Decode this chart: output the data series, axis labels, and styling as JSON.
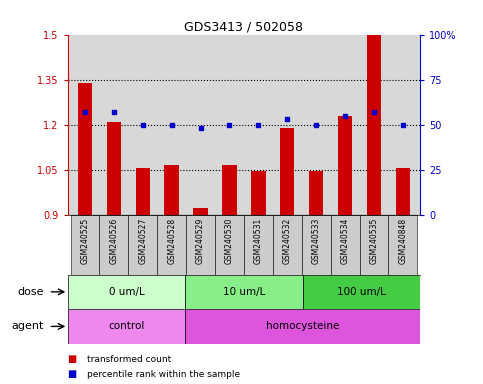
{
  "title": "GDS3413 / 502058",
  "samples": [
    "GSM240525",
    "GSM240526",
    "GSM240527",
    "GSM240528",
    "GSM240529",
    "GSM240530",
    "GSM240531",
    "GSM240532",
    "GSM240533",
    "GSM240534",
    "GSM240535",
    "GSM240848"
  ],
  "bar_values": [
    1.34,
    1.21,
    1.055,
    1.065,
    0.925,
    1.065,
    1.045,
    1.19,
    1.045,
    1.23,
    1.5,
    1.055
  ],
  "percentile_values": [
    57,
    57,
    50,
    50,
    48,
    50,
    50,
    53,
    50,
    55,
    57,
    50
  ],
  "bar_color": "#cc0000",
  "percentile_color": "#0000cc",
  "ylim_left": [
    0.9,
    1.5
  ],
  "ylim_right": [
    0,
    100
  ],
  "yticks_left": [
    0.9,
    1.05,
    1.2,
    1.35,
    1.5
  ],
  "yticks_right": [
    0,
    25,
    50,
    75,
    100
  ],
  "ytick_labels_left": [
    "0.9",
    "1.05",
    "1.2",
    "1.35",
    "1.5"
  ],
  "ytick_labels_right": [
    "0",
    "25",
    "50",
    "75",
    "100%"
  ],
  "hlines": [
    1.05,
    1.2,
    1.35
  ],
  "dose_groups": [
    {
      "label": "0 um/L",
      "start": 0,
      "end": 4,
      "color": "#ccffcc"
    },
    {
      "label": "10 um/L",
      "start": 4,
      "end": 8,
      "color": "#88ee88"
    },
    {
      "label": "100 um/L",
      "start": 8,
      "end": 12,
      "color": "#44cc44"
    }
  ],
  "agent_groups": [
    {
      "label": "control",
      "start": 0,
      "end": 4,
      "color": "#ee88ee"
    },
    {
      "label": "homocysteine",
      "start": 4,
      "end": 12,
      "color": "#dd55dd"
    }
  ],
  "legend_items": [
    {
      "label": "transformed count",
      "color": "#cc0000"
    },
    {
      "label": "percentile rank within the sample",
      "color": "#0000cc"
    }
  ],
  "dose_label": "dose",
  "agent_label": "agent",
  "background_color": "#ffffff",
  "plot_bg_color": "#d8d8d8"
}
